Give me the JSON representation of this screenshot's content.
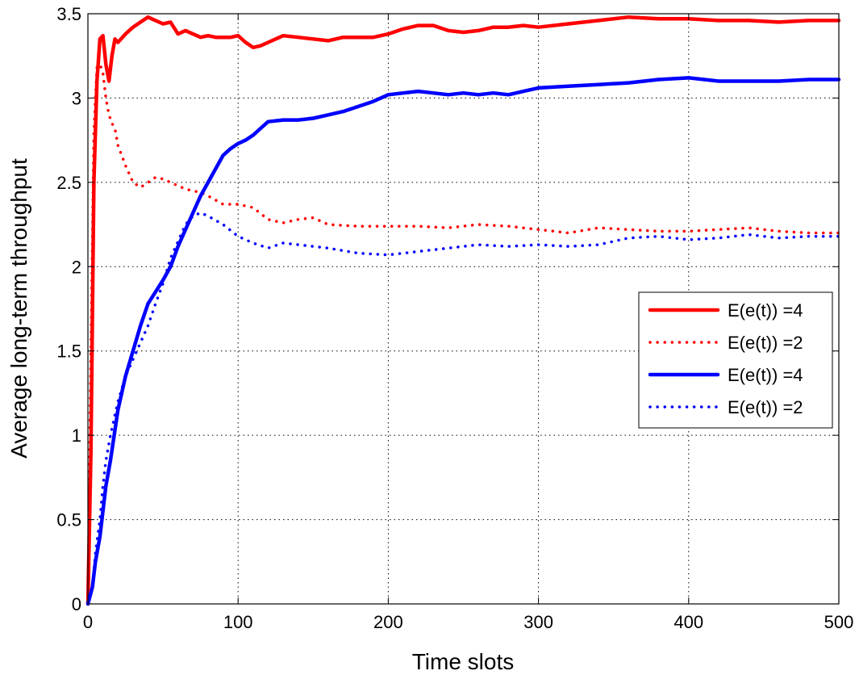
{
  "chart_data": {
    "type": "line",
    "title": "",
    "xlabel": "Time slots",
    "ylabel": "Average long-term throughput",
    "xlim": [
      0,
      500
    ],
    "ylim": [
      0,
      3.5
    ],
    "x_ticks": [
      "0",
      "100",
      "200",
      "300",
      "400",
      "500"
    ],
    "y_ticks": [
      "0",
      "0.5",
      "1",
      "1.5",
      "2",
      "2.5",
      "3",
      "3.5"
    ],
    "grid": true,
    "legend_position": "right",
    "series": [
      {
        "name": "E(e(t)) =4",
        "color": "#ff0000",
        "style": "solid",
        "x": [
          0,
          2,
          4,
          6,
          8,
          10,
          12,
          14,
          16,
          18,
          20,
          25,
          30,
          35,
          40,
          45,
          50,
          55,
          60,
          65,
          70,
          75,
          80,
          85,
          90,
          95,
          100,
          105,
          110,
          115,
          120,
          125,
          130,
          140,
          150,
          160,
          170,
          180,
          190,
          200,
          210,
          220,
          230,
          240,
          250,
          260,
          270,
          280,
          290,
          300,
          320,
          340,
          360,
          380,
          400,
          420,
          440,
          460,
          480,
          500
        ],
        "y": [
          0,
          0.9,
          2.5,
          3.1,
          3.35,
          3.37,
          3.2,
          3.1,
          3.25,
          3.35,
          3.33,
          3.38,
          3.42,
          3.45,
          3.48,
          3.46,
          3.44,
          3.45,
          3.38,
          3.4,
          3.38,
          3.36,
          3.37,
          3.36,
          3.36,
          3.36,
          3.37,
          3.33,
          3.3,
          3.31,
          3.33,
          3.35,
          3.37,
          3.36,
          3.35,
          3.34,
          3.36,
          3.36,
          3.36,
          3.38,
          3.41,
          3.43,
          3.43,
          3.4,
          3.39,
          3.4,
          3.42,
          3.42,
          3.43,
          3.42,
          3.44,
          3.46,
          3.48,
          3.47,
          3.47,
          3.46,
          3.46,
          3.45,
          3.46,
          3.46
        ]
      },
      {
        "name": "E(e(t)) =2",
        "color": "#ff0000",
        "style": "dotted",
        "x": [
          0,
          2,
          4,
          6,
          8,
          10,
          12,
          14,
          16,
          18,
          20,
          25,
          30,
          35,
          40,
          45,
          50,
          55,
          60,
          65,
          70,
          75,
          80,
          90,
          100,
          110,
          120,
          130,
          140,
          150,
          160,
          180,
          200,
          220,
          240,
          260,
          280,
          300,
          320,
          340,
          360,
          380,
          400,
          420,
          440,
          460,
          480,
          500
        ],
        "y": [
          0,
          1.5,
          2.8,
          3.18,
          3.2,
          3.15,
          3.0,
          2.9,
          2.85,
          2.82,
          2.72,
          2.6,
          2.5,
          2.47,
          2.5,
          2.53,
          2.52,
          2.5,
          2.48,
          2.46,
          2.45,
          2.44,
          2.42,
          2.37,
          2.37,
          2.35,
          2.28,
          2.26,
          2.28,
          2.29,
          2.25,
          2.24,
          2.24,
          2.24,
          2.23,
          2.25,
          2.24,
          2.22,
          2.2,
          2.23,
          2.22,
          2.21,
          2.21,
          2.22,
          2.23,
          2.21,
          2.2,
          2.2
        ]
      },
      {
        "name": "E(e(t)) =4",
        "color": "#0000ff",
        "style": "solid",
        "x": [
          0,
          3,
          5,
          8,
          10,
          12,
          15,
          20,
          25,
          30,
          35,
          40,
          45,
          50,
          55,
          60,
          65,
          70,
          75,
          80,
          85,
          90,
          95,
          100,
          105,
          110,
          115,
          120,
          130,
          140,
          150,
          160,
          170,
          180,
          190,
          200,
          210,
          220,
          230,
          240,
          250,
          260,
          270,
          280,
          290,
          300,
          320,
          340,
          360,
          380,
          400,
          420,
          440,
          460,
          480,
          500
        ],
        "y": [
          0,
          0.1,
          0.25,
          0.4,
          0.55,
          0.7,
          0.85,
          1.15,
          1.35,
          1.5,
          1.65,
          1.78,
          1.85,
          1.92,
          2.0,
          2.12,
          2.22,
          2.32,
          2.42,
          2.5,
          2.58,
          2.66,
          2.7,
          2.73,
          2.75,
          2.78,
          2.82,
          2.86,
          2.87,
          2.87,
          2.88,
          2.9,
          2.92,
          2.95,
          2.98,
          3.02,
          3.03,
          3.04,
          3.03,
          3.02,
          3.03,
          3.02,
          3.03,
          3.02,
          3.04,
          3.06,
          3.07,
          3.08,
          3.09,
          3.11,
          3.12,
          3.1,
          3.1,
          3.1,
          3.11,
          3.11
        ]
      },
      {
        "name": "E(e(t)) =2",
        "color": "#0000ff",
        "style": "dotted",
        "x": [
          0,
          3,
          5,
          8,
          10,
          12,
          15,
          20,
          25,
          30,
          35,
          40,
          45,
          50,
          55,
          60,
          65,
          70,
          75,
          80,
          90,
          100,
          110,
          120,
          130,
          140,
          150,
          160,
          180,
          200,
          220,
          240,
          260,
          280,
          300,
          320,
          340,
          360,
          380,
          400,
          420,
          440,
          460,
          480,
          500
        ],
        "y": [
          0,
          0.1,
          0.3,
          0.5,
          0.7,
          0.85,
          1.0,
          1.2,
          1.35,
          1.45,
          1.55,
          1.65,
          1.78,
          1.9,
          2.05,
          2.15,
          2.25,
          2.3,
          2.32,
          2.3,
          2.25,
          2.18,
          2.14,
          2.11,
          2.14,
          2.13,
          2.12,
          2.11,
          2.08,
          2.07,
          2.09,
          2.11,
          2.13,
          2.12,
          2.13,
          2.12,
          2.13,
          2.17,
          2.18,
          2.16,
          2.17,
          2.19,
          2.17,
          2.18,
          2.18
        ]
      }
    ]
  }
}
